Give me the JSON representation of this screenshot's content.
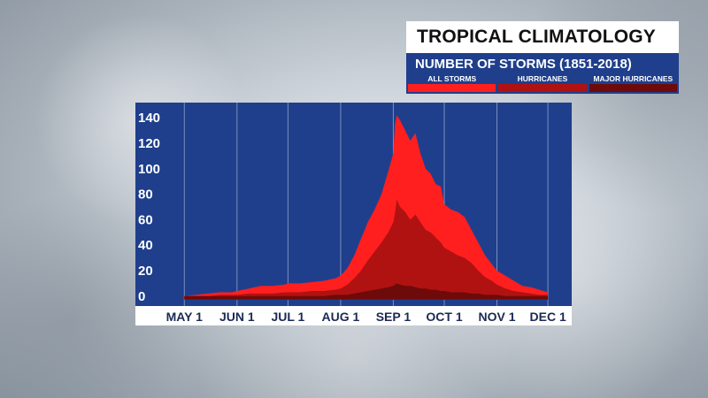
{
  "header": {
    "title": "TROPICAL CLIMATOLOGY",
    "subtitle": "NUMBER OF STORMS (1851-2018)"
  },
  "legend": {
    "items": [
      {
        "label": "ALL STORMS",
        "color": "#ff1f1f"
      },
      {
        "label": "HURRICANES",
        "color": "#b01212"
      },
      {
        "label": "MAJOR HURRICANES",
        "color": "#6e0a0a"
      }
    ]
  },
  "colors": {
    "panel": "#1f3f8c",
    "gridline": "#9fb0d6",
    "all_storms": "#ff1f1f",
    "hurricanes": "#b01212",
    "major_hurricanes": "#6e0a0a"
  },
  "chart_data": {
    "type": "area",
    "title": "TROPICAL CLIMATOLOGY",
    "subtitle": "NUMBER OF STORMS (1851-2018)",
    "xlabel": "",
    "ylabel": "",
    "x_tick_labels": [
      "MAY 1",
      "JUN 1",
      "JUL 1",
      "AUG 1",
      "SEP 1",
      "OCT 1",
      "NOV 1",
      "DEC 1"
    ],
    "x_tick_day_of_year": [
      121,
      152,
      182,
      213,
      244,
      274,
      305,
      335
    ],
    "y_ticks": [
      0,
      20,
      40,
      60,
      80,
      100,
      120,
      140
    ],
    "ylim": [
      -5,
      145
    ],
    "xlim_day_of_year": [
      112,
      349
    ],
    "grid": "vertical at month starts",
    "legend_position": "top-right",
    "x_day_of_year": [
      121,
      128,
      135,
      142,
      149,
      152,
      159,
      166,
      173,
      180,
      182,
      189,
      196,
      203,
      210,
      213,
      217,
      221,
      225,
      229,
      233,
      237,
      241,
      244,
      245,
      246,
      248,
      251,
      254,
      257,
      260,
      263,
      266,
      269,
      272,
      274,
      278,
      282,
      286,
      290,
      294,
      298,
      302,
      305,
      310,
      315,
      320,
      325,
      330,
      335
    ],
    "series": [
      {
        "name": "ALL STORMS",
        "values": [
          0,
          1,
          2,
          3,
          3,
          4,
          6,
          8,
          8,
          9,
          10,
          10,
          11,
          12,
          14,
          16,
          22,
          32,
          45,
          58,
          68,
          80,
          98,
          112,
          135,
          142,
          138,
          130,
          122,
          128,
          112,
          100,
          96,
          88,
          86,
          72,
          68,
          66,
          62,
          52,
          42,
          32,
          25,
          20,
          16,
          12,
          8,
          7,
          5,
          3
        ]
      },
      {
        "name": "HURRICANES",
        "values": [
          0,
          0,
          0,
          1,
          1,
          1,
          2,
          2,
          2,
          3,
          3,
          3,
          4,
          4,
          5,
          6,
          9,
          14,
          20,
          28,
          35,
          42,
          50,
          58,
          65,
          76,
          70,
          66,
          60,
          64,
          58,
          52,
          50,
          46,
          42,
          38,
          35,
          32,
          30,
          26,
          20,
          15,
          12,
          9,
          6,
          4,
          3,
          2,
          1,
          1
        ]
      },
      {
        "name": "MAJOR HURRICANES",
        "values": [
          0,
          0,
          0,
          0,
          0,
          0,
          0,
          0,
          0,
          0,
          0,
          0,
          0,
          0,
          1,
          1,
          1,
          2,
          3,
          4,
          5,
          6,
          7,
          8,
          9,
          10,
          9,
          8,
          8,
          7,
          6,
          6,
          5,
          5,
          4,
          4,
          3,
          3,
          3,
          2,
          2,
          1,
          1,
          1,
          0,
          0,
          0,
          0,
          0,
          0
        ]
      }
    ]
  }
}
